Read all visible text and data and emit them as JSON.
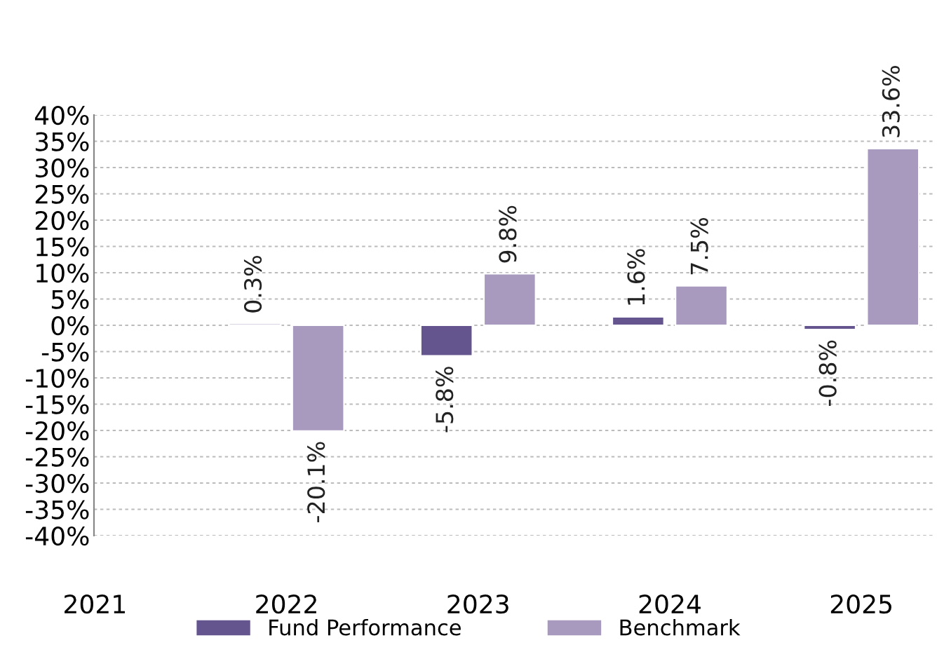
{
  "chart_data": {
    "type": "bar",
    "categories": [
      "2021",
      "2022",
      "2023",
      "2024",
      "2025"
    ],
    "series": [
      {
        "name": "Fund Performance",
        "color": "#65558f",
        "values": [
          null,
          0.3,
          -5.8,
          1.6,
          -0.8
        ],
        "value_labels": [
          null,
          "0.3%",
          "-5.8%",
          "1.6%",
          "-0.8%"
        ]
      },
      {
        "name": "Benchmark",
        "color": "#a899bf",
        "values": [
          null,
          -20.1,
          9.8,
          7.5,
          33.6
        ],
        "value_labels": [
          null,
          "-20.1%",
          "9.8%",
          "7.5%",
          "33.6%"
        ]
      }
    ],
    "ylim": [
      -40,
      40
    ],
    "yticks": [
      {
        "value": -40,
        "label": "-40%"
      },
      {
        "value": -35,
        "label": "-35%"
      },
      {
        "value": -30,
        "label": "-30%"
      },
      {
        "value": -25,
        "label": "-25%"
      },
      {
        "value": -20,
        "label": "-20%"
      },
      {
        "value": -15,
        "label": "-15%"
      },
      {
        "value": -10,
        "label": "-10%"
      },
      {
        "value": -5,
        "label": "-5%"
      },
      {
        "value": 0,
        "label": "0%"
      },
      {
        "value": 5,
        "label": "5%"
      },
      {
        "value": 10,
        "label": "10%"
      },
      {
        "value": 15,
        "label": "15%"
      },
      {
        "value": 20,
        "label": "20%"
      },
      {
        "value": 25,
        "label": "25%"
      },
      {
        "value": 30,
        "label": "30%"
      },
      {
        "value": 35,
        "label": "35%"
      },
      {
        "value": 40,
        "label": "40%"
      }
    ],
    "grid": "y",
    "legend": "bottom"
  }
}
